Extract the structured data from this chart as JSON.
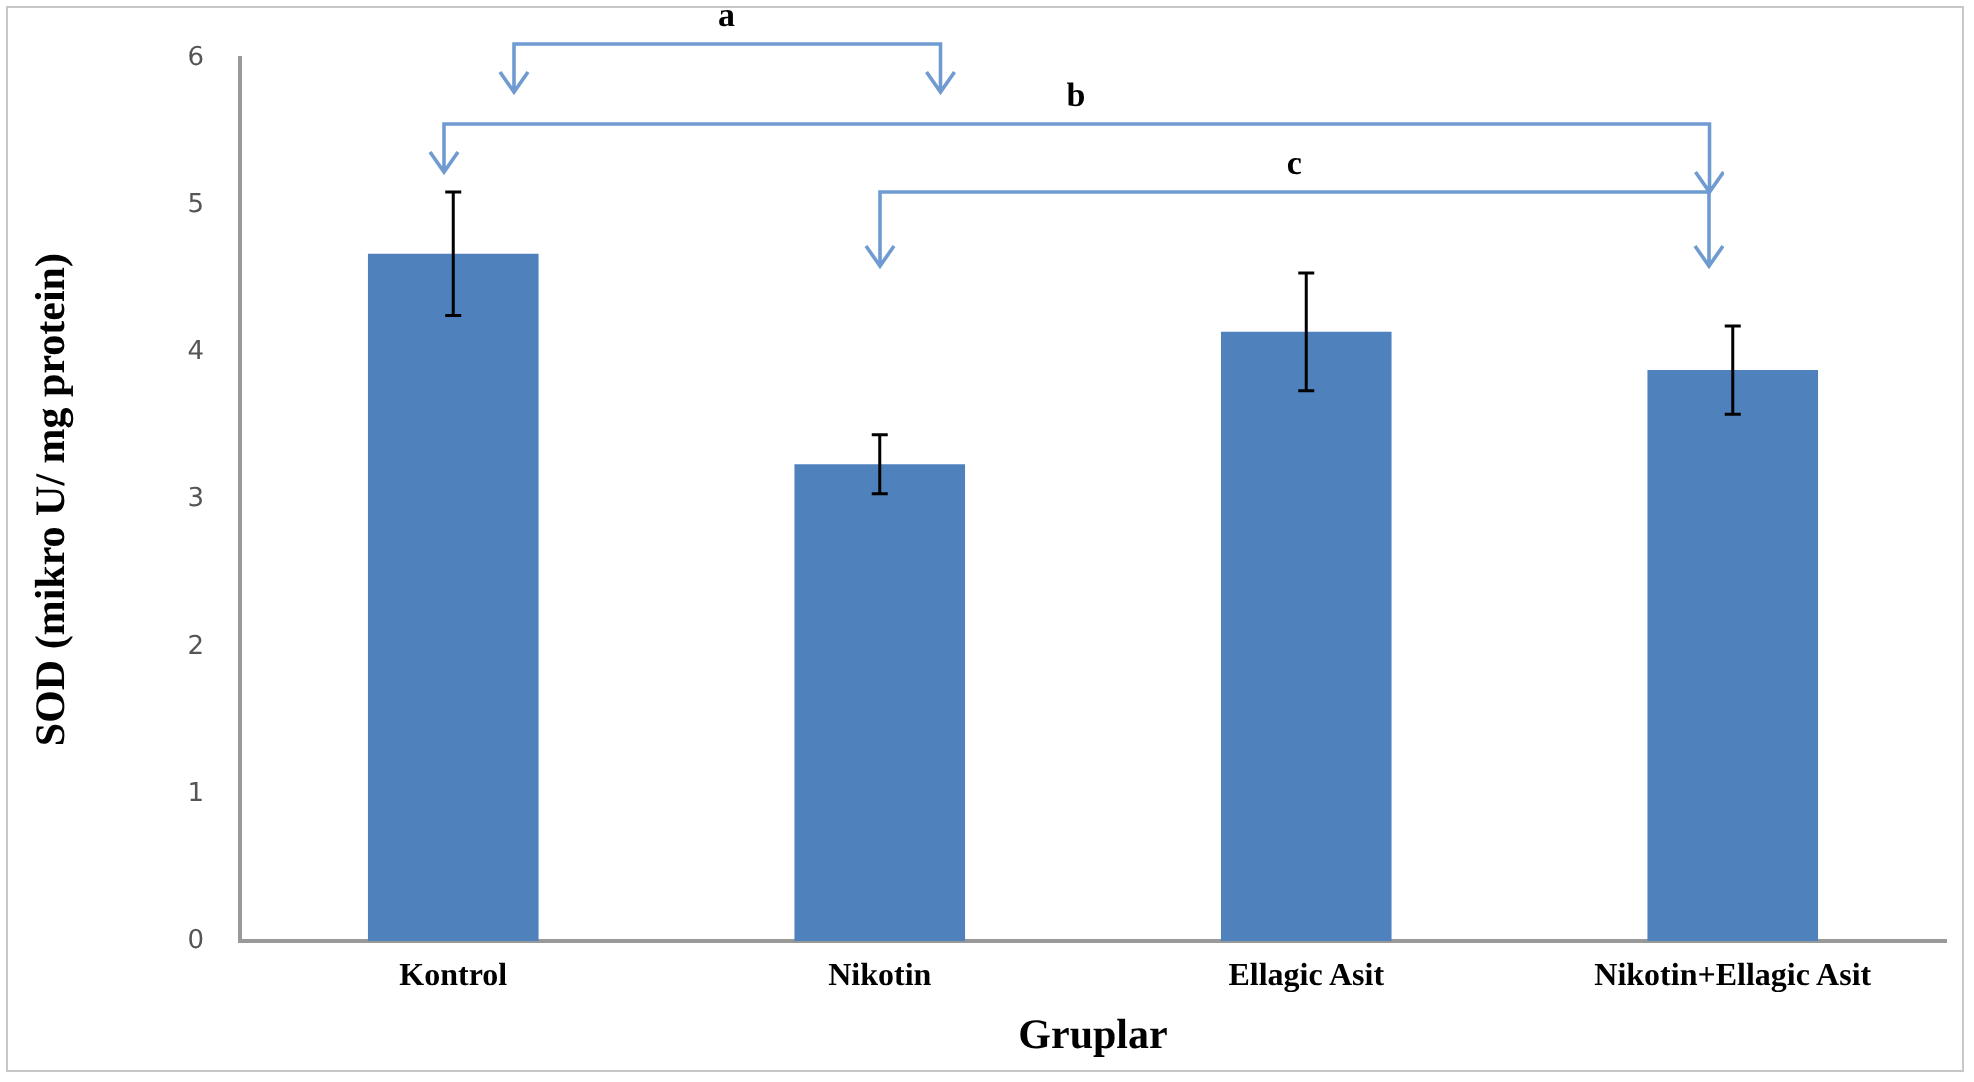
{
  "chart_data": {
    "type": "bar",
    "xlabel": "Gruplar",
    "ylabel": "SOD (mikro U/ mg protein)",
    "categories": [
      "Kontrol",
      "Nikotin",
      "Ellagic Asit",
      "Nikotin+Ellagic Asit"
    ],
    "values": [
      4.67,
      3.24,
      4.14,
      3.88
    ],
    "errors": [
      0.42,
      0.2,
      0.4,
      0.3
    ],
    "color": "#4f81bd",
    "ylim": [
      0,
      6
    ],
    "yticks": [
      0,
      1,
      2,
      3,
      4,
      5,
      6
    ],
    "grid": false,
    "legend": false,
    "annotations": [
      "a",
      "b",
      "c"
    ]
  }
}
